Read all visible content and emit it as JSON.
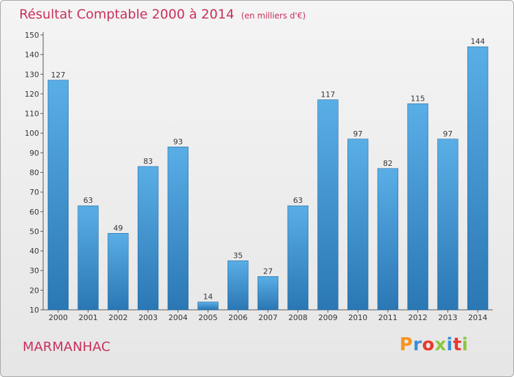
{
  "header": {
    "title": "Résultat Comptable 2000 à 2014",
    "unit": "(en milliers d'€)"
  },
  "footer": {
    "commune": "MARMANHAC",
    "logo": "Proxiti",
    "logo_colors": [
      "#f7941d",
      "#3a8fd6",
      "#e8382c",
      "#8dc63f",
      "#3a8fd6",
      "#e8382c",
      "#8dc63f"
    ]
  },
  "colors": {
    "accent": "#c8305a",
    "bar_top": "#5aaee6",
    "bar_bottom": "#2a77b4",
    "axis": "#555555"
  },
  "chart_data": {
    "type": "bar",
    "title": "Résultat Comptable 2000 à 2014 (en milliers d'€)",
    "xlabel": "",
    "ylabel": "",
    "categories": [
      "2000",
      "2001",
      "2002",
      "2003",
      "2004",
      "2005",
      "2006",
      "2007",
      "2008",
      "2009",
      "2010",
      "2011",
      "2012",
      "2013",
      "2014"
    ],
    "values": [
      127,
      63,
      49,
      83,
      93,
      14,
      35,
      27,
      63,
      117,
      97,
      82,
      115,
      97,
      144
    ],
    "ylim": [
      10,
      150
    ],
    "yticks": [
      10,
      20,
      30,
      40,
      50,
      60,
      70,
      80,
      90,
      100,
      110,
      120,
      130,
      140,
      150
    ],
    "grid": false,
    "legend": "none"
  }
}
